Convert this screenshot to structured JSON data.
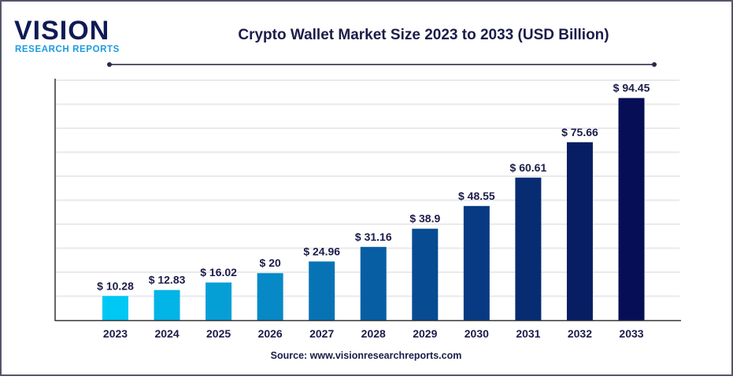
{
  "logo": {
    "name": "VISION",
    "tagline": "RESEARCH REPORTS"
  },
  "source": "Source: www.visionresearchreports.com",
  "chart_data": {
    "type": "bar",
    "title": "Crypto Wallet Market Size 2023 to 2033 (USD Billion)",
    "xlabel": "",
    "ylabel": "",
    "ylim": [
      0,
      102
    ],
    "grid": true,
    "categories": [
      "2023",
      "2024",
      "2025",
      "2026",
      "2027",
      "2028",
      "2029",
      "2030",
      "2031",
      "2032",
      "2033"
    ],
    "values": [
      10.28,
      12.83,
      16.02,
      20,
      24.96,
      31.16,
      38.9,
      48.55,
      60.61,
      75.66,
      94.45
    ],
    "data_labels": [
      "$ 10.28",
      "$ 12.83",
      "$ 16.02",
      "$ 20",
      "$ 24.96",
      "$ 31.16",
      "$ 38.9",
      "$ 48.55",
      "$ 60.61",
      "$ 75.66",
      "$ 94.45"
    ],
    "colors": [
      "#00c8f5",
      "#03b4e6",
      "#059fd6",
      "#0689c6",
      "#0773b5",
      "#075ea3",
      "#074b92",
      "#073a82",
      "#082c72",
      "#071e63",
      "#060f55"
    ]
  }
}
